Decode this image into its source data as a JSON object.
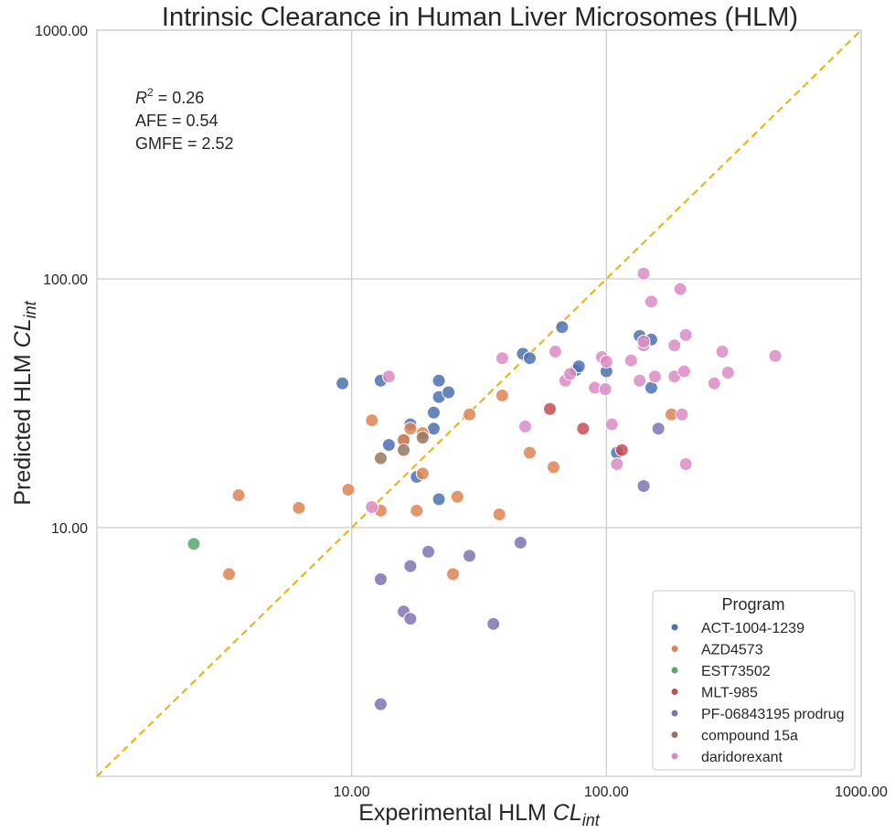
{
  "chart_data": {
    "type": "scatter",
    "title": "Intrinsic Clearance in Human Liver Microsomes (HLM)",
    "xlabel_main": "Experimental HLM ",
    "xlabel_var": "CL",
    "xlabel_sub": "int",
    "ylabel_main": "Predicted HLM ",
    "ylabel_var": "CL",
    "ylabel_sub": "int",
    "xscale": "log",
    "yscale": "log",
    "xlim": [
      1.0,
      1000.0
    ],
    "ylim": [
      1.0,
      1000.0
    ],
    "xticks": [
      10,
      100,
      1000
    ],
    "xtick_labels": [
      "10.00",
      "100.00",
      "1000.00"
    ],
    "yticks": [
      10,
      100,
      1000
    ],
    "ytick_labels": [
      "10.00",
      "100.00",
      "1000.00"
    ],
    "grid": true,
    "identity_line": {
      "color": "#e8b51f",
      "style": "dashed"
    },
    "stats": {
      "r2_label": "R",
      "r2_sup": "2",
      "r2_value": " = 0.26",
      "afe": "AFE = 0.54",
      "gmfe": "GMFE = 2.52"
    },
    "legend": {
      "title": "Program",
      "placement": "lower-right"
    },
    "series": [
      {
        "name": "ACT-1004-1239",
        "color": "#4c72b0",
        "points": [
          [
            9.2,
            38
          ],
          [
            13,
            39
          ],
          [
            14,
            21.5
          ],
          [
            16,
            22.5
          ],
          [
            17,
            26
          ],
          [
            18,
            16
          ],
          [
            21,
            29
          ],
          [
            21,
            25
          ],
          [
            22,
            39
          ],
          [
            22,
            33.5
          ],
          [
            24,
            35
          ],
          [
            22,
            13
          ],
          [
            47,
            50
          ],
          [
            50,
            48
          ],
          [
            67,
            64
          ],
          [
            76,
            43
          ],
          [
            78,
            44.5
          ],
          [
            100,
            42.5
          ],
          [
            135,
            59
          ],
          [
            150,
            57
          ],
          [
            150,
            36.5
          ],
          [
            110,
            20
          ]
        ]
      },
      {
        "name": "AZD4573",
        "color": "#dd8452",
        "points": [
          [
            3.3,
            6.5
          ],
          [
            3.6,
            13.5
          ],
          [
            6.2,
            12
          ],
          [
            9.7,
            14.2
          ],
          [
            12,
            27
          ],
          [
            13,
            11.7
          ],
          [
            16,
            22.5
          ],
          [
            17,
            25
          ],
          [
            18,
            11.7
          ],
          [
            19,
            16.5
          ],
          [
            19,
            24
          ],
          [
            25,
            6.5
          ],
          [
            26,
            13.3
          ],
          [
            29,
            28.5
          ],
          [
            38,
            11.3
          ],
          [
            39,
            34
          ],
          [
            50,
            20
          ],
          [
            62,
            17.5
          ],
          [
            180,
            28.5
          ]
        ]
      },
      {
        "name": "EST73502",
        "color": "#55a868",
        "points": [
          [
            2.4,
            8.6
          ]
        ]
      },
      {
        "name": "MLT-985",
        "color": "#c44e52",
        "points": [
          [
            60,
            30
          ],
          [
            81,
            25
          ],
          [
            115,
            20.5
          ]
        ]
      },
      {
        "name": "PF-06843195 prodrug",
        "color": "#8172b3",
        "points": [
          [
            13,
            6.2
          ],
          [
            13,
            1.95
          ],
          [
            16,
            4.6
          ],
          [
            17,
            7
          ],
          [
            17,
            4.3
          ],
          [
            20,
            8
          ],
          [
            29,
            7.7
          ],
          [
            36,
            4.1
          ],
          [
            46,
            8.7
          ],
          [
            160,
            25
          ],
          [
            140,
            14.7
          ]
        ]
      },
      {
        "name": "compound 15a",
        "color": "#937860",
        "points": [
          [
            13,
            19
          ],
          [
            16,
            20.5
          ],
          [
            19,
            23
          ]
        ]
      },
      {
        "name": "daridorexant",
        "color": "#da8bc3",
        "points": [
          [
            12,
            12.1
          ],
          [
            14,
            40.5
          ],
          [
            39,
            48
          ],
          [
            48,
            25.5
          ],
          [
            63,
            51
          ],
          [
            69,
            39
          ],
          [
            72,
            41.5
          ],
          [
            90,
            36.5
          ],
          [
            96,
            48.5
          ],
          [
            99,
            36
          ],
          [
            100,
            46.5
          ],
          [
            105,
            26
          ],
          [
            110,
            18
          ],
          [
            125,
            47
          ],
          [
            135,
            39
          ],
          [
            140,
            105
          ],
          [
            140,
            54
          ],
          [
            140,
            56
          ],
          [
            150,
            81
          ],
          [
            155,
            40.5
          ],
          [
            185,
            54
          ],
          [
            185,
            40.5
          ],
          [
            195,
            91
          ],
          [
            198,
            28.5
          ],
          [
            202,
            42.5
          ],
          [
            205,
            18
          ],
          [
            205,
            59.5
          ],
          [
            265,
            38
          ],
          [
            285,
            51
          ],
          [
            300,
            42
          ],
          [
            460,
            49
          ]
        ]
      }
    ]
  }
}
